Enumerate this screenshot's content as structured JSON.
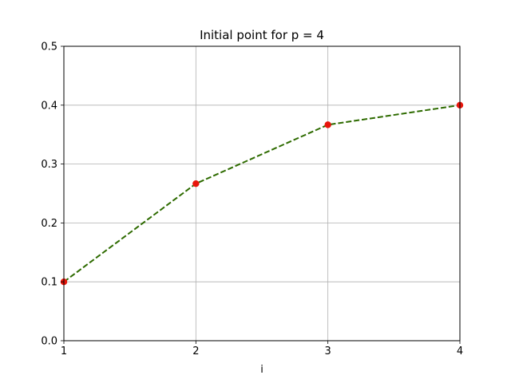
{
  "chart_data": {
    "type": "line",
    "title": "Initial point for p = 4",
    "xlabel": "i",
    "ylabel": "",
    "x": [
      1,
      2,
      3,
      4
    ],
    "xlim": [
      1,
      4
    ],
    "ylim": [
      0,
      0.5
    ],
    "x_ticks": [
      "1",
      "2",
      "3",
      "4"
    ],
    "y_ticks": [
      "0.0",
      "0.1",
      "0.2",
      "0.3",
      "0.4",
      "0.5"
    ],
    "grid": true,
    "series": [
      {
        "values": [
          0.1,
          0.2667,
          0.3667,
          0.4
        ],
        "line_color": "#2e6b00",
        "line_style": "dashed",
        "marker_color": "#e8150b",
        "marker": "circle"
      }
    ]
  }
}
